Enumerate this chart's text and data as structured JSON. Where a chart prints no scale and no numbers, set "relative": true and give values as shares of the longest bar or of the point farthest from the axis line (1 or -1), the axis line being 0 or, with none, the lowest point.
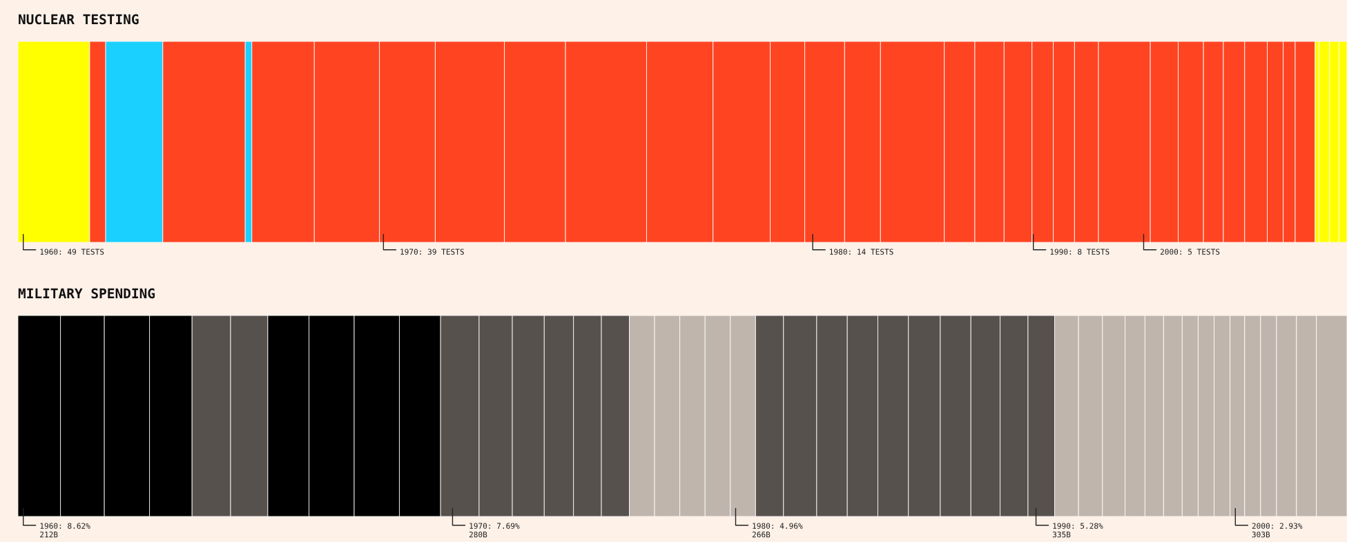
{
  "chart_data": [
    {
      "type": "bar",
      "title": "NUCLEAR TESTING",
      "orientation": "horizontal",
      "stacked": true,
      "relative": true,
      "categories": [
        null
      ],
      "tick_labels": false,
      "series": [
        {
          "color": "#ffff00",
          "values": [
            0.054
          ]
        },
        {
          "color": "#ff4422",
          "values": [
            0.012
          ]
        },
        {
          "color": "#1ad0ff",
          "values": [
            0.043
          ]
        },
        {
          "color": "#ff4422",
          "values": [
            0.062
          ]
        },
        {
          "color": "#1ad0ff",
          "values": [
            0.005
          ]
        },
        {
          "color": "#ff4422",
          "values": [
            0.047
          ]
        },
        {
          "color": "#ff4422",
          "values": [
            0.049
          ]
        },
        {
          "color": "#ff4422",
          "values": [
            0.042
          ]
        },
        {
          "color": "#ff4422",
          "values": [
            0.052
          ]
        },
        {
          "color": "#ff4422",
          "values": [
            0.046
          ]
        },
        {
          "color": "#ff4422",
          "values": [
            0.061
          ]
        },
        {
          "color": "#ff4422",
          "values": [
            0.05
          ]
        },
        {
          "color": "#ff4422",
          "values": [
            0.043
          ]
        },
        {
          "color": "#ff4422",
          "values": [
            0.026
          ]
        },
        {
          "color": "#ff4422",
          "values": [
            0.03
          ]
        },
        {
          "color": "#ff4422",
          "values": [
            0.027
          ]
        },
        {
          "color": "#ff4422",
          "values": [
            0.048
          ]
        },
        {
          "color": "#ff4422",
          "values": [
            0.023
          ]
        },
        {
          "color": "#ff4422",
          "values": [
            0.022
          ]
        },
        {
          "color": "#ff4422",
          "values": [
            0.021
          ]
        },
        {
          "color": "#ff4422",
          "values": [
            0.016
          ]
        },
        {
          "color": "#ff4422",
          "values": [
            0.016
          ]
        },
        {
          "color": "#ff4422",
          "values": [
            0.018
          ]
        },
        {
          "color": "#ff4422",
          "values": [
            0.039
          ]
        },
        {
          "color": "#ff4422",
          "values": [
            0.021
          ]
        },
        {
          "color": "#ff4422",
          "values": [
            0.019
          ]
        },
        {
          "color": "#ff4422",
          "values": [
            0.015
          ]
        },
        {
          "color": "#ff4422",
          "values": [
            0.016
          ]
        },
        {
          "color": "#ff4422",
          "values": [
            0.017
          ]
        },
        {
          "color": "#ff4422",
          "values": [
            0.012
          ]
        },
        {
          "color": "#ff4422",
          "values": [
            0.009
          ]
        },
        {
          "color": "#ff4422",
          "values": [
            0.015
          ]
        },
        {
          "color": "#ffff00",
          "values": [
            0.003
          ]
        },
        {
          "color": "#ffff00",
          "values": [
            0.008
          ]
        },
        {
          "color": "#ffff00",
          "values": [
            0.007
          ]
        },
        {
          "color": "#ffff00",
          "values": [
            0.006
          ]
        }
      ],
      "annotations": [
        "1960: 49 TESTS",
        "1970: 39 TESTS",
        "1980: 14 TESTS",
        "1990: 8 TESTS",
        "2000: 5 TESTS"
      ]
    },
    {
      "type": "bar",
      "title": "MILITARY SPENDING",
      "orientation": "horizontal",
      "stacked": true,
      "relative": true,
      "categories": [
        null
      ],
      "tick_labels": false,
      "series": [
        {
          "color": "#000000",
          "values": [
            0.032
          ]
        },
        {
          "color": "#000000",
          "values": [
            0.033
          ]
        },
        {
          "color": "#000000",
          "values": [
            0.034
          ]
        },
        {
          "color": "#000000",
          "values": [
            0.032
          ]
        },
        {
          "color": "#57514e",
          "values": [
            0.029
          ]
        },
        {
          "color": "#57514e",
          "values": [
            0.028
          ]
        },
        {
          "color": "#000000",
          "values": [
            0.031
          ]
        },
        {
          "color": "#000000",
          "values": [
            0.034
          ]
        },
        {
          "color": "#000000",
          "values": [
            0.034
          ]
        },
        {
          "color": "#000000",
          "values": [
            0.031
          ]
        },
        {
          "color": "#57514e",
          "values": [
            0.029
          ]
        },
        {
          "color": "#57514e",
          "values": [
            0.025
          ]
        },
        {
          "color": "#57514e",
          "values": [
            0.024
          ]
        },
        {
          "color": "#57514e",
          "values": [
            0.022
          ]
        },
        {
          "color": "#57514e",
          "values": [
            0.021
          ]
        },
        {
          "color": "#57514e",
          "values": [
            0.021
          ]
        },
        {
          "color": "#c0b5ad",
          "values": [
            0.019
          ]
        },
        {
          "color": "#c0b5ad",
          "values": [
            0.019
          ]
        },
        {
          "color": "#c0b5ad",
          "values": [
            0.019
          ]
        },
        {
          "color": "#c0b5ad",
          "values": [
            0.019
          ]
        },
        {
          "color": "#c0b5ad",
          "values": [
            0.019
          ]
        },
        {
          "color": "#57514e",
          "values": [
            0.021
          ]
        },
        {
          "color": "#57514e",
          "values": [
            0.025
          ]
        },
        {
          "color": "#57514e",
          "values": [
            0.023
          ]
        },
        {
          "color": "#57514e",
          "values": [
            0.023
          ]
        },
        {
          "color": "#57514e",
          "values": [
            0.023
          ]
        },
        {
          "color": "#57514e",
          "values": [
            0.024
          ]
        },
        {
          "color": "#57514e",
          "values": [
            0.023
          ]
        },
        {
          "color": "#57514e",
          "values": [
            0.022
          ]
        },
        {
          "color": "#57514e",
          "values": [
            0.021
          ]
        },
        {
          "color": "#57514e",
          "values": [
            0.02
          ]
        },
        {
          "color": "#c0b5ad",
          "values": [
            0.018
          ]
        },
        {
          "color": "#c0b5ad",
          "values": [
            0.018
          ]
        },
        {
          "color": "#c0b5ad",
          "values": [
            0.017
          ]
        },
        {
          "color": "#c0b5ad",
          "values": [
            0.015
          ]
        },
        {
          "color": "#c0b5ad",
          "values": [
            0.014
          ]
        },
        {
          "color": "#c0b5ad",
          "values": [
            0.014
          ]
        },
        {
          "color": "#c0b5ad",
          "values": [
            0.012
          ]
        },
        {
          "color": "#c0b5ad",
          "values": [
            0.012
          ]
        },
        {
          "color": "#c0b5ad",
          "values": [
            0.012
          ]
        },
        {
          "color": "#c0b5ad",
          "values": [
            0.011
          ]
        },
        {
          "color": "#c0b5ad",
          "values": [
            0.012
          ]
        },
        {
          "color": "#c0b5ad",
          "values": [
            0.012
          ]
        },
        {
          "color": "#c0b5ad",
          "values": [
            0.015
          ]
        },
        {
          "color": "#c0b5ad",
          "values": [
            0.015
          ]
        },
        {
          "color": "#c0b5ad",
          "values": [
            0.023
          ]
        }
      ],
      "annotations": [
        "1960: 8.62%\n212B",
        "1970: 7.69%\n280B",
        "1980: 4.96%\n266B",
        "1990: 5.28%\n335B",
        "2000: 2.93%\n303B"
      ]
    }
  ]
}
